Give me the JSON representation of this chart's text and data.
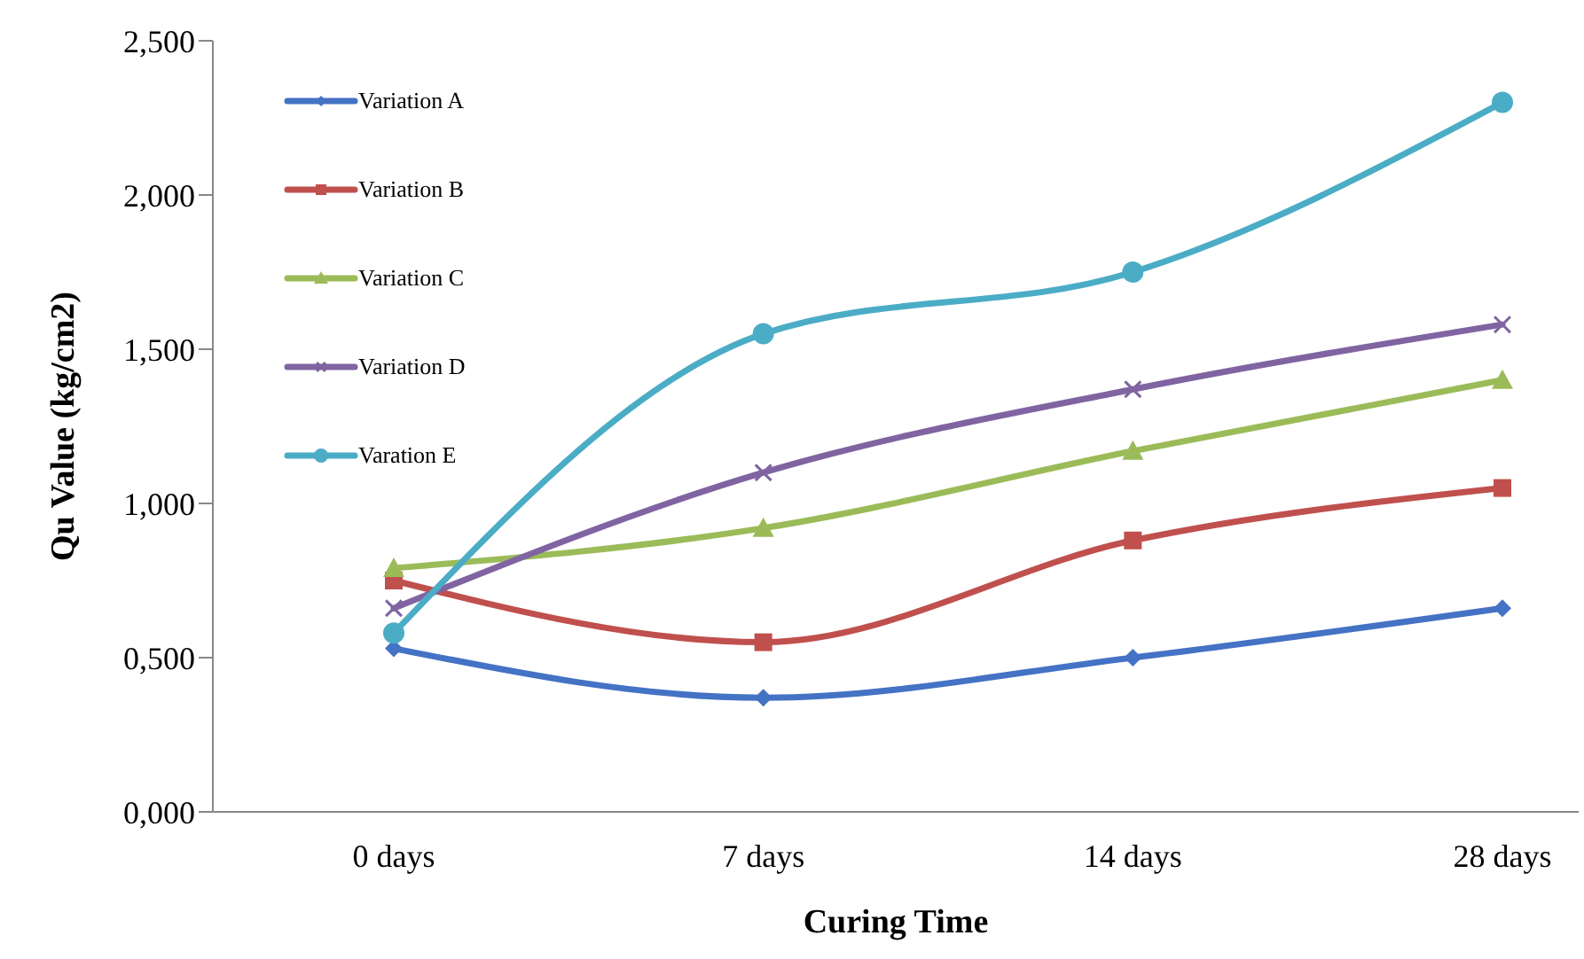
{
  "chart_data": {
    "type": "line",
    "xlabel": "Curing Time",
    "ylabel": "Qu Value (kg/cm2)",
    "categories": [
      "0 days",
      "7 days",
      "14 days",
      "28 days"
    ],
    "series": [
      {
        "name": "Variation A",
        "color": "#4472c4",
        "marker": "diamond",
        "values": [
          0.53,
          0.37,
          0.5,
          0.66
        ]
      },
      {
        "name": "Variation B",
        "color": "#c0504d",
        "marker": "square",
        "values": [
          0.75,
          0.55,
          0.88,
          1.05
        ]
      },
      {
        "name": "Variation C",
        "color": "#9bbb59",
        "marker": "triangle",
        "values": [
          0.79,
          0.92,
          1.17,
          1.4
        ]
      },
      {
        "name": "Variation D",
        "color": "#8064a2",
        "marker": "cross",
        "values": [
          0.66,
          1.1,
          1.37,
          1.58
        ]
      },
      {
        "name": "Varation  E",
        "color": "#4bacc6",
        "marker": "circle",
        "values": [
          0.58,
          1.55,
          1.75,
          2.3
        ]
      }
    ],
    "ylim": [
      0,
      2.5
    ],
    "yticks": [
      {
        "value": 0,
        "label": "0,000"
      },
      {
        "value": 0.5,
        "label": "0,500"
      },
      {
        "value": 1,
        "label": "1,000"
      },
      {
        "value": 1.5,
        "label": "1,500"
      },
      {
        "value": 2,
        "label": "2,000"
      },
      {
        "value": 2.5,
        "label": "2,500"
      }
    ],
    "grid": false,
    "legend": "top left",
    "line_style": "solid"
  }
}
